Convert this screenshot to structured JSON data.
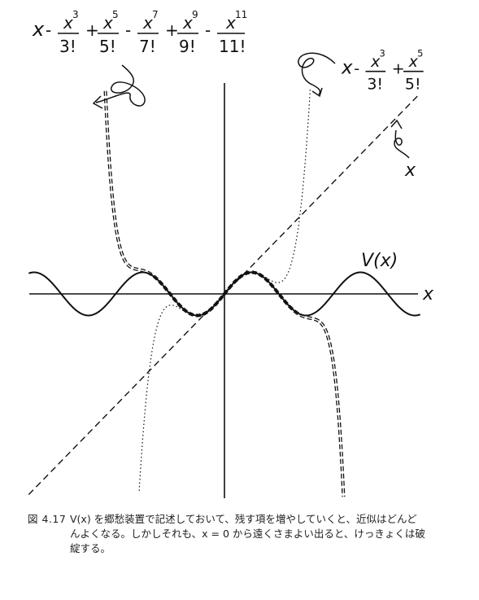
{
  "figure": {
    "formula_long": {
      "x": "x",
      "terms": [
        {
          "sign": "-",
          "num": "x",
          "pow": "3",
          "den": "3!"
        },
        {
          "sign": "+",
          "num": "x",
          "pow": "5",
          "den": "5!"
        },
        {
          "sign": "-",
          "num": "x",
          "pow": "7",
          "den": "7!"
        },
        {
          "sign": "+",
          "num": "x",
          "pow": "9",
          "den": "9!"
        },
        {
          "sign": "-",
          "num": "x",
          "pow": "11",
          "den": "11!"
        }
      ]
    },
    "formula_short": {
      "x": "x",
      "terms": [
        {
          "sign": "-",
          "num": "x",
          "pow": "3",
          "den": "3!"
        },
        {
          "sign": "+",
          "num": "x",
          "pow": "5",
          "den": "5!"
        }
      ]
    },
    "label_x_line": "x",
    "label_v": "V(x)",
    "axis_label_x": "x"
  },
  "caption": {
    "number": "図 4.17",
    "line1": "V(x) を郷愁装置で記述しておいて、残す項を増やしていくと、近似はどんど",
    "line2": "んよくなる。しかしそれも、x = 0 から遠くさまよい出ると、けっきょくは破",
    "line3": "綻する。"
  }
}
